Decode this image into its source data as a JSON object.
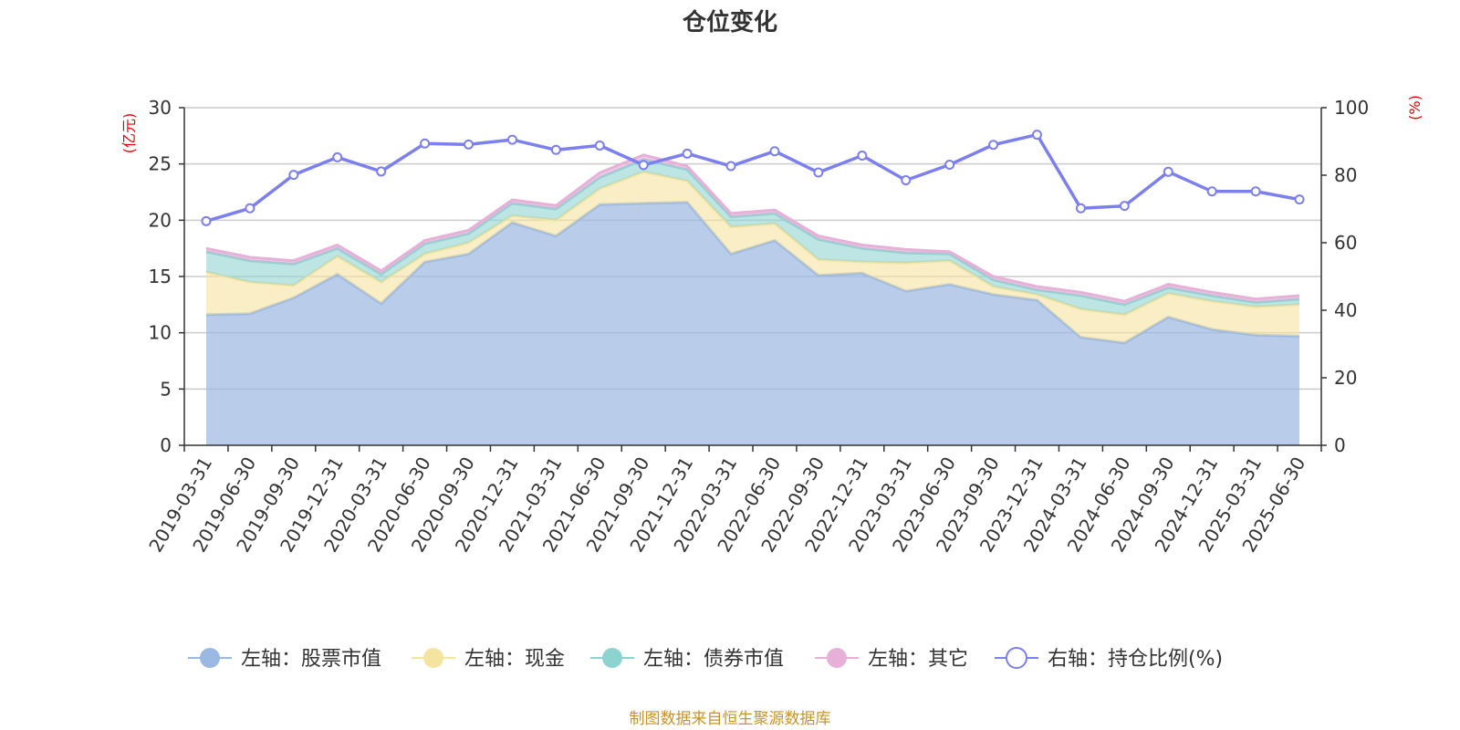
{
  "chart_data": {
    "type": "area",
    "title": "仓位变化",
    "categories": [
      "2019-03-31",
      "2019-06-30",
      "2019-09-30",
      "2019-12-31",
      "2020-03-31",
      "2020-06-30",
      "2020-09-30",
      "2020-12-31",
      "2021-03-31",
      "2021-06-30",
      "2021-09-30",
      "2021-12-31",
      "2022-03-31",
      "2022-06-30",
      "2022-09-30",
      "2022-12-31",
      "2023-03-31",
      "2023-06-30",
      "2023-09-30",
      "2023-12-31",
      "2024-03-31",
      "2024-06-30",
      "2024-09-30",
      "2024-12-31",
      "2025-03-31",
      "2025-06-30"
    ],
    "left_axis": {
      "unit": "(亿元)",
      "ylim": [
        0,
        30
      ],
      "ticks": [
        0,
        5,
        10,
        15,
        20,
        25,
        30
      ]
    },
    "right_axis": {
      "unit": "(%)",
      "ylim": [
        0,
        100
      ],
      "ticks": [
        0,
        20,
        40,
        60,
        80,
        100
      ]
    },
    "grid": true,
    "legend_position": "bottom",
    "series": [
      {
        "name": "左轴：股票市值",
        "axis": "left",
        "kind": "stacked-area",
        "color": "#9bb8e2",
        "values": [
          11.6,
          11.7,
          13.1,
          15.2,
          12.6,
          16.3,
          17.0,
          19.8,
          18.6,
          21.4,
          21.5,
          21.6,
          17.0,
          18.2,
          15.1,
          15.3,
          13.7,
          14.3,
          13.4,
          12.9,
          9.6,
          9.1,
          11.4,
          10.3,
          9.8,
          9.7
        ]
      },
      {
        "name": "左轴：现金",
        "axis": "left",
        "kind": "stacked-area",
        "color": "#f5e3a0",
        "values": [
          3.8,
          2.8,
          1.1,
          1.6,
          1.9,
          0.7,
          1.0,
          0.6,
          1.4,
          1.4,
          2.8,
          1.9,
          2.4,
          1.5,
          1.4,
          1.0,
          2.5,
          2.1,
          0.7,
          0.5,
          2.5,
          2.5,
          2.1,
          2.5,
          2.5,
          2.8
        ]
      },
      {
        "name": "左轴：债券市值",
        "axis": "left",
        "kind": "stacked-area",
        "color": "#8fd3d1",
        "values": [
          1.8,
          1.9,
          1.9,
          0.7,
          0.7,
          0.9,
          0.8,
          1.1,
          1.0,
          1.0,
          1.1,
          1.0,
          0.9,
          0.9,
          1.8,
          1.2,
          0.9,
          0.6,
          0.6,
          0.4,
          1.2,
          0.9,
          0.5,
          0.5,
          0.4,
          0.5
        ]
      },
      {
        "name": "左轴：其它",
        "axis": "left",
        "kind": "stacked-area",
        "color": "#e6b0d8",
        "values": [
          0.3,
          0.3,
          0.3,
          0.3,
          0.3,
          0.3,
          0.3,
          0.3,
          0.3,
          0.4,
          0.4,
          0.3,
          0.3,
          0.3,
          0.3,
          0.3,
          0.3,
          0.2,
          0.3,
          0.3,
          0.3,
          0.3,
          0.3,
          0.3,
          0.3,
          0.3
        ]
      },
      {
        "name": "右轴：持仓比例(%)",
        "axis": "right",
        "kind": "line",
        "color": "#7b7ff0",
        "values": [
          66.4,
          70.2,
          80.1,
          85.3,
          81.1,
          89.4,
          89.1,
          90.5,
          87.5,
          88.8,
          83.0,
          86.4,
          82.7,
          87.1,
          80.8,
          85.8,
          78.5,
          83.1,
          89.0,
          92.0,
          70.2,
          70.9,
          81.0,
          75.2,
          75.2,
          72.8
        ]
      }
    ]
  },
  "source_note": "制图数据来自恒生聚源数据库"
}
